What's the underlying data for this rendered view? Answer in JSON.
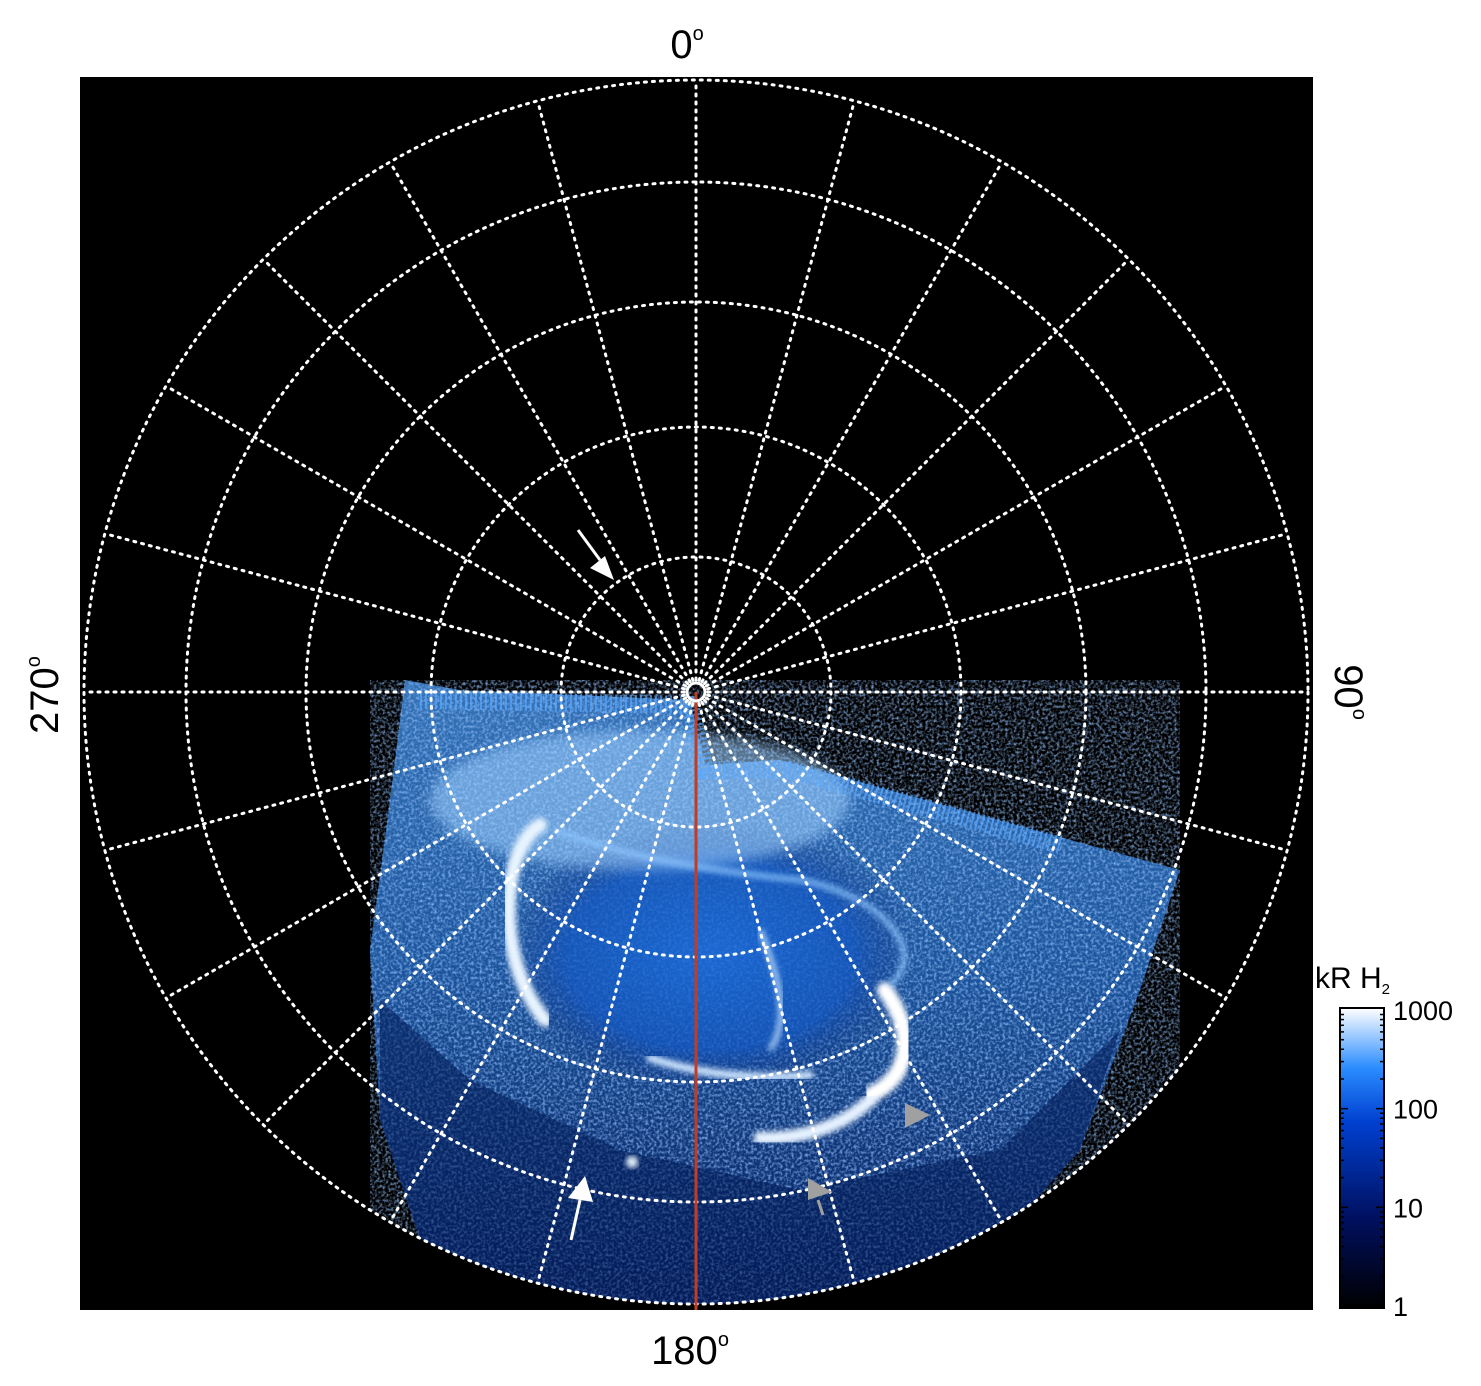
{
  "polar_labels": {
    "top": "0",
    "right": "90",
    "bottom": "180",
    "left": "270",
    "degree_symbol": "o"
  },
  "colorbar": {
    "title_main": "kR H",
    "title_sub": "2",
    "ticks": [
      "1000",
      "100",
      "10",
      "1"
    ],
    "scale": "log",
    "range": [
      1,
      1000
    ],
    "colors": [
      "#000000",
      "#001060",
      "#0040d0",
      "#2a8cff",
      "#ffffff"
    ]
  },
  "grid": {
    "meridian_step_deg": 15,
    "ring_count": 5,
    "style": "dotted",
    "color": "#ffffff"
  },
  "marker_line": {
    "color": "#c23b22",
    "longitude": "180"
  },
  "arrows": [
    {
      "color": "#ffffff"
    },
    {
      "color": "#ffffff"
    },
    {
      "color": "#a0a0a0"
    },
    {
      "color": "#a0a0a0"
    }
  ]
}
